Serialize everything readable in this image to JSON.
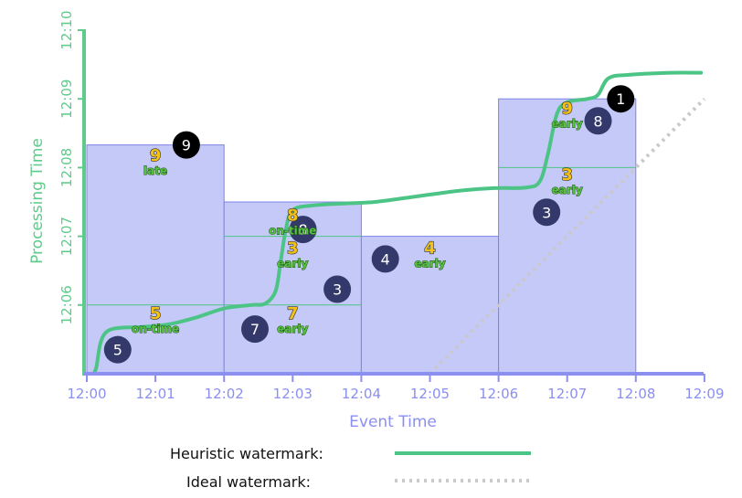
{
  "colors": {
    "axis_y": "#5ecb8a",
    "axis_x": "#8a8ff0",
    "window_fill": "#c5c9f7",
    "window_stroke": "#7e84e8",
    "heuristic": "#4cc486",
    "ideal": "#c9c9c9",
    "circle_fill": "#33396a",
    "circle_late": "#000000",
    "value_yellow": "#f2c21b",
    "timing_green": "#56c242"
  },
  "axes": {
    "x_title": "Event Time",
    "y_title": "Processing Time",
    "x_ticks": [
      "12:00",
      "12:01",
      "12:02",
      "12:03",
      "12:04",
      "12:05",
      "12:06",
      "12:07",
      "12:08",
      "12:09"
    ],
    "y_ticks": [
      "12:06",
      "12:07",
      "12:08",
      "12:09",
      "12:10"
    ]
  },
  "windows": [
    {
      "start": 0,
      "end": 2,
      "top": 8.33,
      "pane_lines": [
        6.0
      ]
    },
    {
      "start": 2,
      "end": 4,
      "top": 7.5,
      "pane_lines": [
        6.0,
        7.0
      ]
    },
    {
      "start": 4,
      "end": 6,
      "top": 7.0,
      "pane_lines": []
    },
    {
      "start": 6,
      "end": 8,
      "top": 9.0,
      "pane_lines": [
        8.0
      ]
    }
  ],
  "events": [
    {
      "num": "5",
      "x": 0.45,
      "y": 5.35,
      "late": false
    },
    {
      "num": "9",
      "x": 1.45,
      "y": 8.33,
      "late": true
    },
    {
      "num": "7",
      "x": 2.45,
      "y": 5.65,
      "late": false
    },
    {
      "num": "8",
      "x": 3.15,
      "y": 7.1,
      "late": false
    },
    {
      "num": "3",
      "x": 3.65,
      "y": 6.23,
      "late": false
    },
    {
      "num": "4",
      "x": 4.35,
      "y": 6.67,
      "late": false
    },
    {
      "num": "3",
      "x": 6.7,
      "y": 7.35,
      "late": false
    },
    {
      "num": "8",
      "x": 7.45,
      "y": 8.68,
      "late": false
    },
    {
      "num": "1",
      "x": 7.78,
      "y": 9.0,
      "late": true
    }
  ],
  "pane_labels": [
    {
      "value": "5",
      "timing": "on-time",
      "x": 1.0,
      "y": 5.8
    },
    {
      "value": "9",
      "timing": "late",
      "x": 1.0,
      "y": 8.1
    },
    {
      "value": "7",
      "timing": "early",
      "x": 3.0,
      "y": 5.8
    },
    {
      "value": "3",
      "timing": "early",
      "x": 3.0,
      "y": 6.75
    },
    {
      "value": "8",
      "timing": "on-time",
      "x": 3.0,
      "y": 7.23
    },
    {
      "value": "4",
      "timing": "early",
      "x": 5.0,
      "y": 6.75
    },
    {
      "value": "3",
      "timing": "early",
      "x": 7.0,
      "y": 7.82
    },
    {
      "value": "9",
      "timing": "early",
      "x": 7.0,
      "y": 8.78
    }
  ],
  "heuristic_watermark": [
    [
      0.1,
      5.0
    ],
    [
      0.14,
      5.1
    ],
    [
      0.2,
      5.45
    ],
    [
      0.3,
      5.62
    ],
    [
      0.5,
      5.67
    ],
    [
      0.8,
      5.68
    ],
    [
      1.2,
      5.72
    ],
    [
      1.6,
      5.82
    ],
    [
      2.0,
      5.95
    ],
    [
      2.4,
      6.0
    ],
    [
      2.6,
      6.02
    ],
    [
      2.75,
      6.2
    ],
    [
      2.82,
      6.6
    ],
    [
      2.9,
      7.1
    ],
    [
      3.0,
      7.38
    ],
    [
      3.3,
      7.45
    ],
    [
      3.8,
      7.48
    ],
    [
      4.2,
      7.5
    ],
    [
      4.8,
      7.58
    ],
    [
      5.4,
      7.66
    ],
    [
      5.9,
      7.7
    ],
    [
      6.4,
      7.71
    ],
    [
      6.6,
      7.8
    ],
    [
      6.72,
      8.2
    ],
    [
      6.85,
      8.78
    ],
    [
      7.0,
      8.95
    ],
    [
      7.3,
      9.0
    ],
    [
      7.45,
      9.06
    ],
    [
      7.6,
      9.3
    ],
    [
      7.9,
      9.35
    ],
    [
      8.5,
      9.38
    ],
    [
      8.95,
      9.38
    ]
  ],
  "ideal_watermark": [
    [
      5.0,
      5.0
    ],
    [
      9.0,
      9.0
    ]
  ],
  "legend": {
    "heuristic_label": "Heuristic watermark:",
    "ideal_label": "Ideal watermark:"
  }
}
